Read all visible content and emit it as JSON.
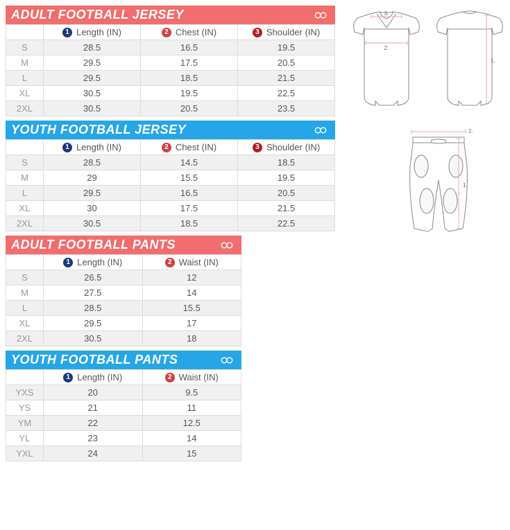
{
  "colors": {
    "adult_header": "#f26d6d",
    "youth_header": "#26a6e6",
    "marker1": "#1a3a7a",
    "marker2": "#d04040",
    "marker3": "#b02020",
    "row_alt": "#f0f0f0",
    "border": "#dcdcdc",
    "text_muted": "#999999",
    "guide_line": "#f2a0c0"
  },
  "sections": [
    {
      "id": "adult-jersey",
      "title": "ADULT FOOTBALL JERSEY",
      "style": "adult",
      "columns": [
        {
          "marker": "1",
          "label": "Length (IN)"
        },
        {
          "marker": "2",
          "label": "Chest (IN)"
        },
        {
          "marker": "3",
          "label": "Shoulder (IN)"
        }
      ],
      "rows": [
        {
          "size": "S",
          "values": [
            "28.5",
            "16.5",
            "19.5"
          ]
        },
        {
          "size": "M",
          "values": [
            "29.5",
            "17.5",
            "20.5"
          ]
        },
        {
          "size": "L",
          "values": [
            "29.5",
            "18.5",
            "21.5"
          ]
        },
        {
          "size": "XL",
          "values": [
            "30.5",
            "19.5",
            "22.5"
          ]
        },
        {
          "size": "2XL",
          "values": [
            "30.5",
            "20.5",
            "23.5"
          ]
        }
      ]
    },
    {
      "id": "youth-jersey",
      "title": "YOUTH FOOTBALL JERSEY",
      "style": "youth",
      "columns": [
        {
          "marker": "1",
          "label": "Length (IN)"
        },
        {
          "marker": "2",
          "label": "Chest (IN)"
        },
        {
          "marker": "3",
          "label": "Shoulder (IN)"
        }
      ],
      "rows": [
        {
          "size": "S",
          "values": [
            "28.5",
            "14.5",
            "18.5"
          ]
        },
        {
          "size": "M",
          "values": [
            "29",
            "15.5",
            "19.5"
          ]
        },
        {
          "size": "L",
          "values": [
            "29.5",
            "16.5",
            "20.5"
          ]
        },
        {
          "size": "XL",
          "values": [
            "30",
            "17.5",
            "21.5"
          ]
        },
        {
          "size": "2XL",
          "values": [
            "30.5",
            "18.5",
            "22.5"
          ]
        }
      ]
    },
    {
      "id": "adult-pants",
      "title": "ADULT FOOTBALL PANTS",
      "style": "adult",
      "columns": [
        {
          "marker": "1",
          "label": "Length (IN)"
        },
        {
          "marker": "2",
          "label": "Waist (IN)"
        }
      ],
      "rows": [
        {
          "size": "S",
          "values": [
            "26.5",
            "12"
          ]
        },
        {
          "size": "M",
          "values": [
            "27.5",
            "14"
          ]
        },
        {
          "size": "L",
          "values": [
            "28.5",
            "15.5"
          ]
        },
        {
          "size": "XL",
          "values": [
            "29.5",
            "17"
          ]
        },
        {
          "size": "2XL",
          "values": [
            "30.5",
            "18"
          ]
        }
      ]
    },
    {
      "id": "youth-pants",
      "title": "YOUTH FOOTBALL PANTS",
      "style": "youth",
      "columns": [
        {
          "marker": "1",
          "label": "Length (IN)"
        },
        {
          "marker": "2",
          "label": "Waist (IN)"
        }
      ],
      "rows": [
        {
          "size": "YXS",
          "values": [
            "20",
            "9.5"
          ]
        },
        {
          "size": "YS",
          "values": [
            "21",
            "11"
          ]
        },
        {
          "size": "YM",
          "values": [
            "22",
            "12.5"
          ]
        },
        {
          "size": "YL",
          "values": [
            "23",
            "14"
          ]
        },
        {
          "size": "YXL",
          "values": [
            "24",
            "15"
          ]
        }
      ]
    }
  ],
  "diagram_labels": {
    "jersey_shoulder": "3.",
    "jersey_chest": "2.",
    "jersey_length": "1.",
    "pants_waist": "2.",
    "pants_length": "1."
  }
}
